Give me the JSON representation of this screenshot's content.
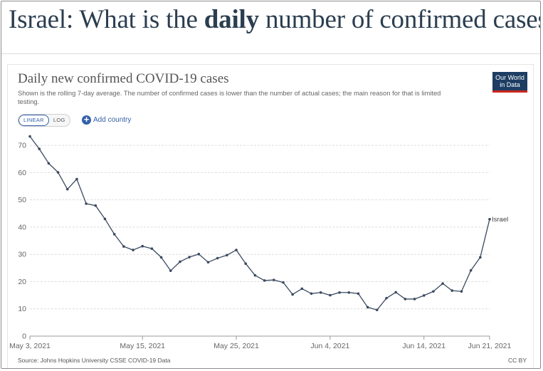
{
  "page": {
    "headline_pre": "Israel: What is the ",
    "headline_bold": "daily",
    "headline_post": " number of confirmed cases?"
  },
  "chart": {
    "title": "Daily new confirmed COVID-19 cases",
    "subtitle": "Shown is the rolling 7-day average. The number of confirmed cases is lower than the number of actual cases; the main reason for that is limited testing.",
    "logo_line1": "Our World",
    "logo_line2": "in Data",
    "scale_linear": "LINEAR",
    "scale_log": "LOG",
    "add_country_label": "Add country",
    "source": "Source: Johns Hopkins University CSSE COVID-19 Data",
    "license": "CC BY"
  },
  "chart_data": {
    "type": "line",
    "title": "Daily new confirmed COVID-19 cases",
    "xlabel": "",
    "ylabel": "",
    "ylim": [
      0,
      75
    ],
    "y_ticks": [
      0,
      10,
      20,
      30,
      40,
      50,
      60,
      70
    ],
    "x_tick_labels": [
      "May 3, 2021",
      "May 15, 2021",
      "May 25, 2021",
      "Jun 4, 2021",
      "Jun 14, 2021",
      "Jun 21, 2021"
    ],
    "x_tick_dates": [
      "2021-05-03",
      "2021-05-15",
      "2021-05-25",
      "2021-06-04",
      "2021-06-14",
      "2021-06-21"
    ],
    "grid": "horizontal",
    "line_color": "#3a4a60",
    "series": [
      {
        "name": "Israel",
        "x": [
          "2021-05-03",
          "2021-05-04",
          "2021-05-05",
          "2021-05-06",
          "2021-05-07",
          "2021-05-08",
          "2021-05-09",
          "2021-05-10",
          "2021-05-11",
          "2021-05-12",
          "2021-05-13",
          "2021-05-14",
          "2021-05-15",
          "2021-05-16",
          "2021-05-17",
          "2021-05-18",
          "2021-05-19",
          "2021-05-20",
          "2021-05-21",
          "2021-05-22",
          "2021-05-23",
          "2021-05-24",
          "2021-05-25",
          "2021-05-26",
          "2021-05-27",
          "2021-05-28",
          "2021-05-29",
          "2021-05-30",
          "2021-05-31",
          "2021-06-01",
          "2021-06-02",
          "2021-06-03",
          "2021-06-04",
          "2021-06-05",
          "2021-06-06",
          "2021-06-07",
          "2021-06-08",
          "2021-06-09",
          "2021-06-10",
          "2021-06-11",
          "2021-06-12",
          "2021-06-13",
          "2021-06-14",
          "2021-06-15",
          "2021-06-16",
          "2021-06-17",
          "2021-06-18",
          "2021-06-19",
          "2021-06-20",
          "2021-06-21"
        ],
        "values": [
          73.3,
          68.7,
          63.4,
          60.1,
          53.9,
          57.6,
          48.6,
          47.9,
          43.0,
          37.4,
          32.9,
          31.6,
          33.0,
          32.1,
          28.9,
          24.0,
          27.3,
          29.0,
          30.1,
          27.1,
          28.6,
          29.7,
          31.6,
          26.6,
          22.3,
          20.4,
          20.6,
          19.7,
          15.3,
          17.4,
          15.6,
          16.0,
          15.0,
          16.0,
          16.0,
          15.6,
          10.6,
          9.6,
          13.9,
          16.1,
          13.6,
          13.6,
          14.9,
          16.4,
          19.3,
          16.7,
          16.4,
          24.1,
          28.9,
          42.9
        ]
      }
    ]
  }
}
